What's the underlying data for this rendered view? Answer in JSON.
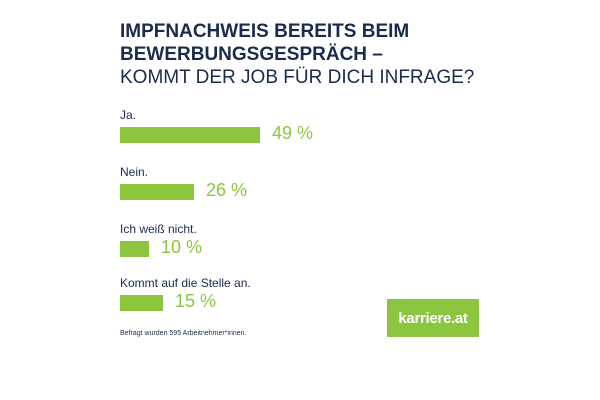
{
  "title": {
    "line1": "IMPFNACHWEIS BEREITS BEIM",
    "line2": "BEWERBUNGSGESPRÄCH –",
    "line3": "KOMMT DER JOB FÜR DICH INFRAGE?"
  },
  "chart_data": {
    "type": "bar",
    "orientation": "horizontal",
    "categories": [
      "Ja.",
      "Nein.",
      "Ich weiß nicht.",
      "Kommt auf die Stelle an."
    ],
    "values": [
      49,
      26,
      10,
      15
    ],
    "value_labels": [
      "49 %",
      "26 %",
      "10 %",
      "15 %"
    ],
    "unit": "%",
    "title": "IMPFNACHWEIS BEREITS BEIM BEWERBUNGSGESPRÄCH – KOMMT DER JOB FÜR DICH INFRAGE?",
    "xlabel": "",
    "ylabel": "",
    "xlim": [
      0,
      49
    ],
    "grid": false
  },
  "footnote": "Befragt wurden 595 Arbeitnehmer*innen.",
  "logo": {
    "text": "karriere.at"
  },
  "colors": {
    "bar": "#8cc63f",
    "value_text": "#8cc63f",
    "title": "#1a2b4c",
    "logo_bg": "#8cc63f"
  }
}
